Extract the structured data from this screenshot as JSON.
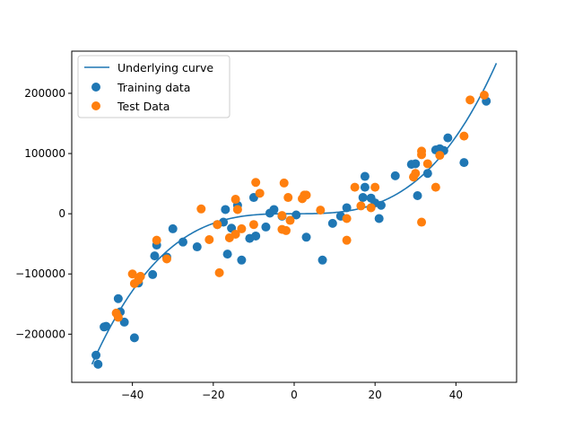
{
  "chart_data": {
    "type": "scatter",
    "title": "",
    "xlabel": "",
    "ylabel": "",
    "xlim": [
      -55,
      55
    ],
    "ylim": [
      -280000,
      270000
    ],
    "x_ticks": [
      -40,
      -20,
      0,
      20,
      40
    ],
    "y_ticks": [
      -200000,
      -100000,
      0,
      100000,
      200000
    ],
    "x_tick_labels": [
      "−40",
      "−20",
      "0",
      "20",
      "40"
    ],
    "y_tick_labels": [
      "−200000",
      "−100000",
      "0",
      "100000",
      "200000"
    ],
    "legend_position": "top-left",
    "grid": false,
    "curve": {
      "name": "Underlying curve",
      "color": "#1f77b4",
      "type": "line",
      "x_range": [
        -50,
        50
      ],
      "coefficients_cubic": 2
    },
    "series": [
      {
        "name": "Training data",
        "color": "#1f77b4",
        "type": "scatter",
        "points": [
          [
            -49,
            -235000
          ],
          [
            -48.5,
            -250000
          ],
          [
            -47,
            -188000
          ],
          [
            -46.5,
            -187000
          ],
          [
            -43.5,
            -141000
          ],
          [
            -43,
            -163000
          ],
          [
            -42,
            -180000
          ],
          [
            -39.5,
            -206000
          ],
          [
            -38.5,
            -115000
          ],
          [
            -35,
            -101000
          ],
          [
            -34.5,
            -70000
          ],
          [
            -34,
            -52000
          ],
          [
            -31.5,
            -72000
          ],
          [
            -30,
            -25000
          ],
          [
            -27.5,
            -47000
          ],
          [
            -24,
            -55000
          ],
          [
            -19,
            -18000
          ],
          [
            -17.5,
            -14000
          ],
          [
            -17,
            7000
          ],
          [
            -16.5,
            -67000
          ],
          [
            -15.5,
            -24000
          ],
          [
            -14,
            14000
          ],
          [
            -13,
            -77000
          ],
          [
            -11,
            -41000
          ],
          [
            -10,
            27000
          ],
          [
            -9.5,
            -37000
          ],
          [
            -7,
            -22000
          ],
          [
            -6,
            1000
          ],
          [
            -5,
            7000
          ],
          [
            -3,
            -4000
          ],
          [
            0.5,
            -2000
          ],
          [
            3,
            -39000
          ],
          [
            7,
            -77000
          ],
          [
            9.5,
            -16000
          ],
          [
            11.5,
            -4000
          ],
          [
            13,
            10000
          ],
          [
            17,
            27000
          ],
          [
            17.5,
            44000
          ],
          [
            17.5,
            62000
          ],
          [
            19,
            26000
          ],
          [
            20,
            18000
          ],
          [
            21,
            -8000
          ],
          [
            21.5,
            14000
          ],
          [
            25,
            63000
          ],
          [
            29,
            82000
          ],
          [
            30,
            83000
          ],
          [
            30.5,
            30000
          ],
          [
            33,
            67000
          ],
          [
            35,
            106000
          ],
          [
            36,
            108000
          ],
          [
            37,
            105000
          ],
          [
            38,
            126000
          ],
          [
            42,
            85000
          ],
          [
            47.5,
            187000
          ]
        ]
      },
      {
        "name": "Test Data",
        "color": "#ff7f0e",
        "type": "scatter",
        "points": [
          [
            -44,
            -165000
          ],
          [
            -43.5,
            -172000
          ],
          [
            -40,
            -100000
          ],
          [
            -39.5,
            -116000
          ],
          [
            -38.5,
            -110000
          ],
          [
            -38,
            -104000
          ],
          [
            -34,
            -44000
          ],
          [
            -31.5,
            -75000
          ],
          [
            -23,
            8000
          ],
          [
            -21,
            -43000
          ],
          [
            -19,
            -18000
          ],
          [
            -18.5,
            -98000
          ],
          [
            -16,
            -40000
          ],
          [
            -14.5,
            24000
          ],
          [
            -14.5,
            -34000
          ],
          [
            -14,
            7000
          ],
          [
            -13,
            -25000
          ],
          [
            -10,
            -18000
          ],
          [
            -9.5,
            52000
          ],
          [
            -8.5,
            34000
          ],
          [
            -3,
            -3000
          ],
          [
            -3,
            -26000
          ],
          [
            -2.5,
            51000
          ],
          [
            -2,
            -28000
          ],
          [
            -1.5,
            27000
          ],
          [
            -1,
            -11000
          ],
          [
            2,
            25000
          ],
          [
            2.5,
            31000
          ],
          [
            3,
            31000
          ],
          [
            6.5,
            6000
          ],
          [
            13,
            -8000
          ],
          [
            13,
            -44000
          ],
          [
            15,
            44000
          ],
          [
            16.5,
            13000
          ],
          [
            19,
            10000
          ],
          [
            20,
            44000
          ],
          [
            29.5,
            61000
          ],
          [
            30,
            67000
          ],
          [
            31.5,
            98000
          ],
          [
            31.5,
            104000
          ],
          [
            31.5,
            -14000
          ],
          [
            33,
            83000
          ],
          [
            35,
            44000
          ],
          [
            36,
            97000
          ],
          [
            42,
            129000
          ],
          [
            43.5,
            189000
          ],
          [
            47,
            197000
          ]
        ]
      }
    ]
  },
  "legend": {
    "items": [
      {
        "label": "Underlying curve",
        "kind": "line",
        "color": "#1f77b4"
      },
      {
        "label": "Training data",
        "kind": "marker",
        "color": "#1f77b4"
      },
      {
        "label": "Test Data",
        "kind": "marker",
        "color": "#ff7f0e"
      }
    ]
  }
}
